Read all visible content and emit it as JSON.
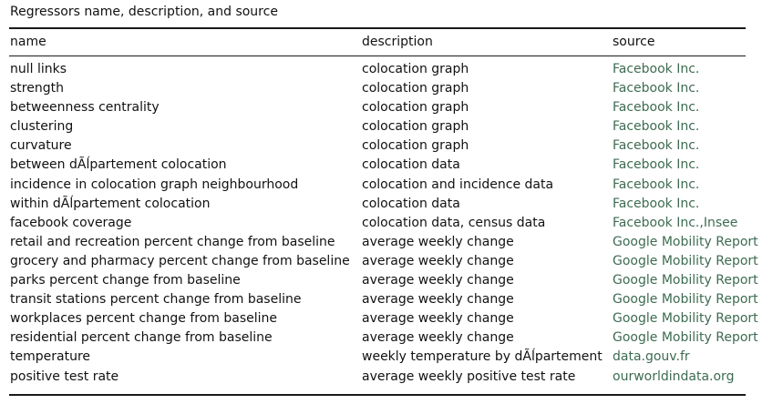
{
  "caption": "Regressors name, description, and source",
  "headers": {
    "name": "name",
    "description": "description",
    "source": "source"
  },
  "rows": [
    {
      "name": "null links",
      "description": "colocation graph",
      "source": "Facebook Inc."
    },
    {
      "name": "strength",
      "description": "colocation graph",
      "source": "Facebook Inc."
    },
    {
      "name": "betweenness centrality",
      "description": "colocation graph",
      "source": "Facebook Inc."
    },
    {
      "name": "clustering",
      "description": "colocation graph",
      "source": "Facebook Inc."
    },
    {
      "name": "curvature",
      "description": "colocation graph",
      "source": "Facebook Inc."
    },
    {
      "name": "between dÃĺpartement colocation",
      "description": "colocation data",
      "source": "Facebook Inc."
    },
    {
      "name": "incidence in colocation graph neighbourhood",
      "description": "colocation and incidence data",
      "source": "Facebook Inc."
    },
    {
      "name": "within dÃĺpartement colocation",
      "description": "colocation data",
      "source": "Facebook Inc."
    },
    {
      "name": "facebook coverage",
      "description": "colocation data, census data",
      "source": "Facebook Inc.,Insee"
    },
    {
      "name": "retail and recreation percent change from baseline",
      "description": "average weekly change",
      "source": "Google Mobility Report"
    },
    {
      "name": "grocery and pharmacy percent change from baseline",
      "description": "average weekly change",
      "source": "Google Mobility Report"
    },
    {
      "name": "parks percent change from baseline",
      "description": "average weekly change",
      "source": "Google Mobility Report"
    },
    {
      "name": "transit stations percent change from baseline",
      "description": "average weekly change",
      "source": "Google Mobility Report"
    },
    {
      "name": "workplaces percent change from baseline",
      "description": "average weekly change",
      "source": "Google Mobility Report"
    },
    {
      "name": "residential percent change from baseline",
      "description": "average weekly change",
      "source": "Google Mobility Report"
    },
    {
      "name": "temperature",
      "description": "weekly temperature by dÃĺpartement",
      "source": "data.gouv.fr"
    },
    {
      "name": "positive test rate",
      "description": "average weekly positive test rate",
      "source": "ourworldindata.org"
    }
  ],
  "colors": {
    "source_link": "#3d6b52",
    "text": "#111111",
    "rule": "#1a1a1a"
  }
}
